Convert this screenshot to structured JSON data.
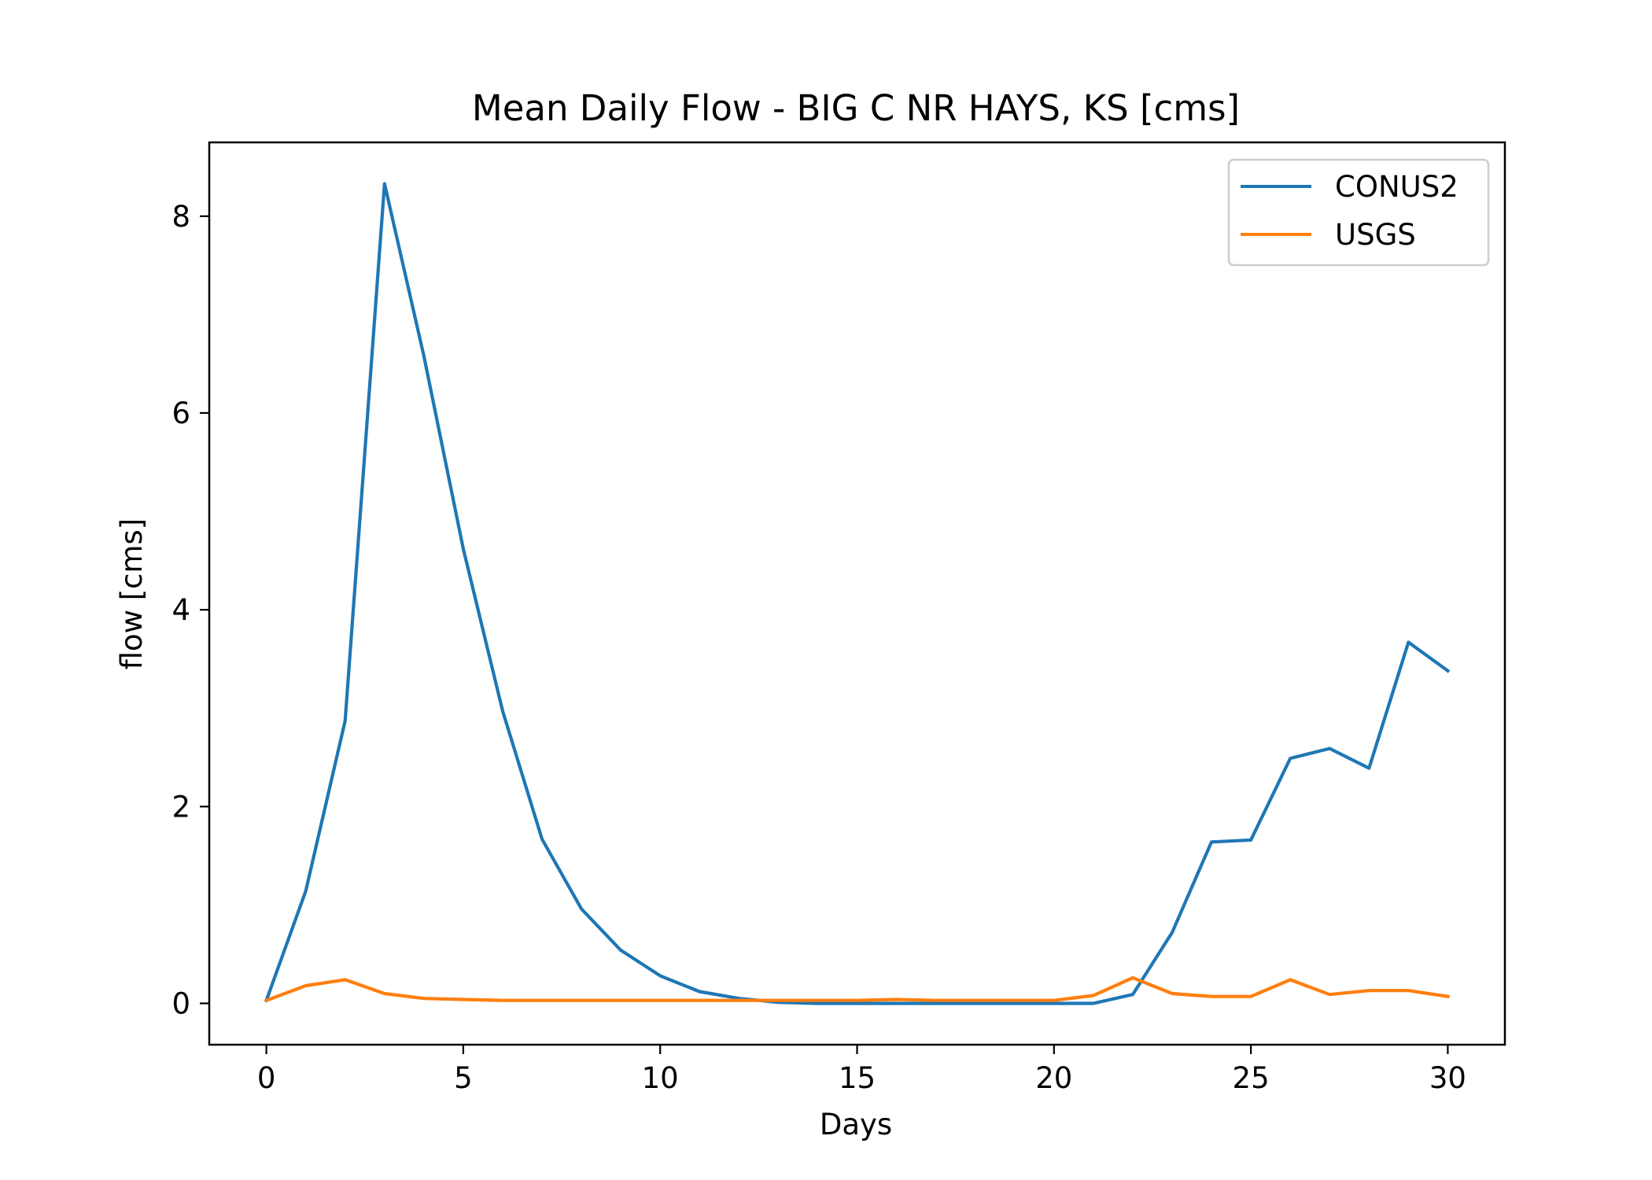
{
  "chart_data": {
    "type": "line",
    "title": "Mean Daily Flow - BIG C NR HAYS, KS [cms]",
    "xlabel": "Days",
    "ylabel": "flow [cms]",
    "xlim": [
      -1.45,
      31.45
    ],
    "ylim": [
      -0.42,
      8.75
    ],
    "xticks": [
      0,
      5,
      10,
      15,
      20,
      25,
      30
    ],
    "yticks": [
      0,
      2,
      4,
      6,
      8
    ],
    "grid": false,
    "legend_placement": "top-right",
    "x": [
      0,
      1,
      2,
      3,
      4,
      5,
      6,
      7,
      8,
      9,
      10,
      11,
      12,
      13,
      14,
      15,
      16,
      17,
      18,
      19,
      20,
      21,
      22,
      23,
      24,
      25,
      26,
      27,
      28,
      29,
      30
    ],
    "series": [
      {
        "name": "CONUS2",
        "color": "#1f77b4",
        "values": [
          0.03,
          1.14,
          2.87,
          8.33,
          6.58,
          4.62,
          2.97,
          1.67,
          0.96,
          0.54,
          0.28,
          0.12,
          0.05,
          0.01,
          0.0,
          0.0,
          0.0,
          0.0,
          0.0,
          0.0,
          0.0,
          0.0,
          0.09,
          0.72,
          1.64,
          1.66,
          2.49,
          2.59,
          2.39,
          3.67,
          3.38
        ]
      },
      {
        "name": "USGS",
        "color": "#ff7f0e",
        "values": [
          0.03,
          0.18,
          0.24,
          0.1,
          0.05,
          0.04,
          0.03,
          0.03,
          0.03,
          0.03,
          0.03,
          0.03,
          0.03,
          0.03,
          0.03,
          0.03,
          0.04,
          0.03,
          0.03,
          0.03,
          0.03,
          0.08,
          0.26,
          0.1,
          0.07,
          0.07,
          0.24,
          0.09,
          0.13,
          0.13,
          0.07
        ]
      }
    ]
  }
}
